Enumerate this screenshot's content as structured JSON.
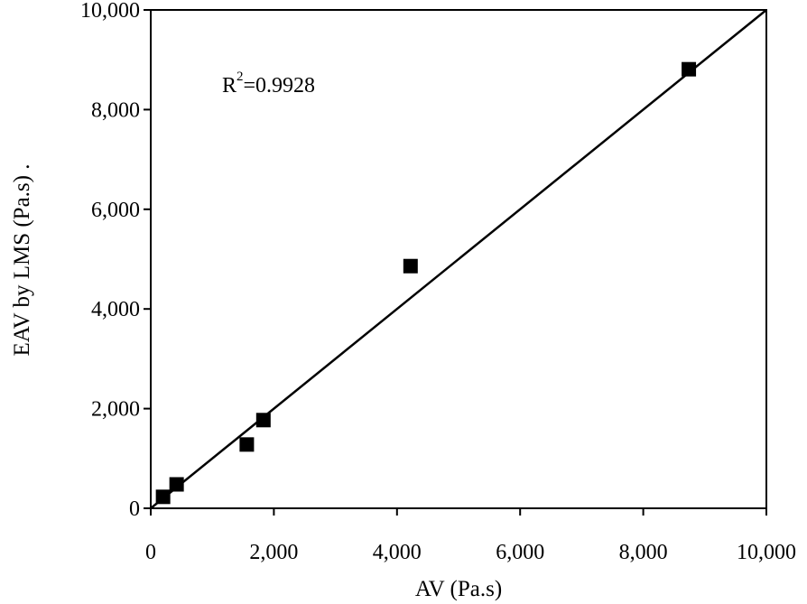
{
  "chart_data": {
    "type": "scatter",
    "xlabel": "AV (Pa.s)",
    "ylabel": "EAV by LMS (Pa.s) .",
    "xlim": [
      0,
      10000
    ],
    "ylim": [
      0,
      10000
    ],
    "x_ticks": [
      "0",
      "2,000",
      "4,000",
      "6,000",
      "8,000",
      "10,000"
    ],
    "y_ticks": [
      "0",
      "2,000",
      "4,000",
      "6,000",
      "8,000",
      "10,000"
    ],
    "grid": false,
    "marker": "square",
    "colors": {
      "marker": "#000000",
      "line": "#000000"
    },
    "series": [
      {
        "points": [
          {
            "x": 200,
            "y": 230
          },
          {
            "x": 420,
            "y": 480
          },
          {
            "x": 1560,
            "y": 1280
          },
          {
            "x": 1830,
            "y": 1770
          },
          {
            "x": 4220,
            "y": 4860
          },
          {
            "x": 8740,
            "y": 8810
          }
        ]
      }
    ],
    "trendline": {
      "x": [
        0,
        10000
      ],
      "y": [
        0,
        10000
      ]
    },
    "annotation": {
      "base": "R",
      "sup": "2",
      "rest": "=0.9928"
    }
  }
}
